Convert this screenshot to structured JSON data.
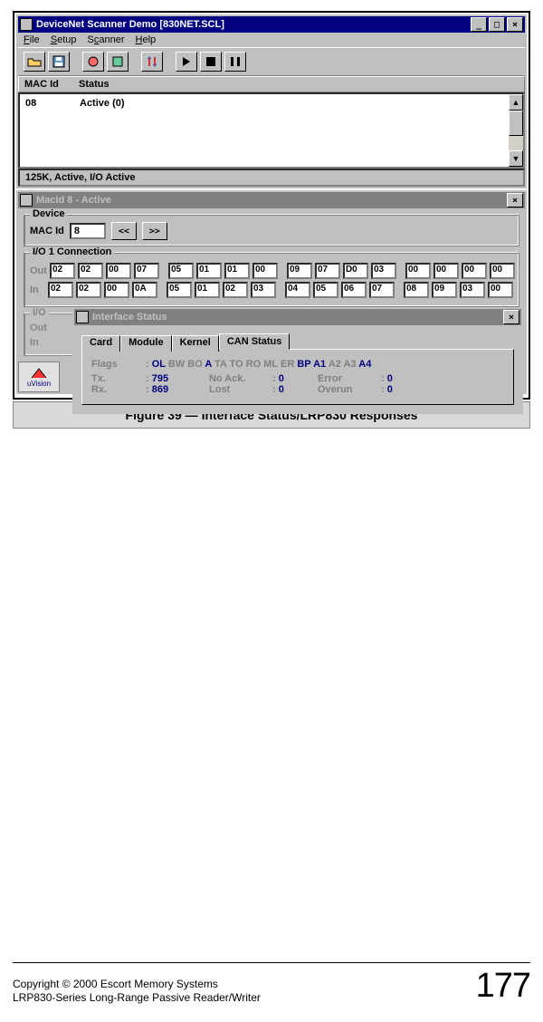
{
  "scanner": {
    "title": "DeviceNet Scanner Demo [830NET.SCL]",
    "menus": {
      "file": "File",
      "setup": "Setup",
      "scanner": "Scanner",
      "help": "Help"
    },
    "list_header": {
      "macid": "MAC Id",
      "status": "Status"
    },
    "list_row": {
      "macid": "08",
      "status": "Active (0)"
    },
    "statusbar": "125K, Active, I/O Active"
  },
  "macid_win": {
    "title": "MacId 8 - Active",
    "group_device": "Device",
    "macid_label": "MAC Id",
    "macid_value": "8",
    "prev": "<<",
    "next": ">>",
    "group_io": "I/O 1 Connection",
    "out_label": "Out",
    "in_label": "In",
    "out": [
      "02",
      "02",
      "00",
      "07",
      "05",
      "01",
      "01",
      "00",
      "09",
      "07",
      "D0",
      "03",
      "00",
      "00",
      "00",
      "00"
    ],
    "in": [
      "02",
      "02",
      "00",
      "0A",
      "05",
      "01",
      "02",
      "03",
      "04",
      "05",
      "06",
      "07",
      "08",
      "09",
      "03",
      "00"
    ],
    "group_io2": "I/O",
    "out2_label": "Out",
    "in2_label": "In"
  },
  "iface": {
    "title": "Interface Status",
    "tabs": {
      "card": "Card",
      "module": "Module",
      "kernel": "Kernel",
      "can": "CAN Status"
    },
    "flags_label": "Flags",
    "flags": [
      {
        "t": "OL",
        "c": "blue"
      },
      {
        "t": "BW",
        "c": "gray"
      },
      {
        "t": "BO",
        "c": "gray"
      },
      {
        "t": "A",
        "c": "blue"
      },
      {
        "t": "TA",
        "c": "gray"
      },
      {
        "t": "TO",
        "c": "gray"
      },
      {
        "t": "RO",
        "c": "gray"
      },
      {
        "t": "ML",
        "c": "gray"
      },
      {
        "t": "ER",
        "c": "gray"
      },
      {
        "t": "BP",
        "c": "blue"
      },
      {
        "t": "A1",
        "c": "blue"
      },
      {
        "t": "A2",
        "c": "gray"
      },
      {
        "t": "A3",
        "c": "gray"
      },
      {
        "t": "A4",
        "c": "blue"
      }
    ],
    "row1": {
      "a": "Tx.",
      "av": "795",
      "b": "No Ack.",
      "bv": "0",
      "c": "Error",
      "cv": "0"
    },
    "row2": {
      "a": "Rx.",
      "av": "869",
      "b": "Lost",
      "bv": "0",
      "c": "Overun",
      "cv": "0"
    }
  },
  "task_label": "uVision",
  "caption": "Figure 39 — Interface Status/LRP830 Responses",
  "footer": {
    "line1": "Copyright © 2000 Escort Memory Systems",
    "line2": "LRP830-Series Long-Range Passive Reader/Writer",
    "page": "177"
  }
}
